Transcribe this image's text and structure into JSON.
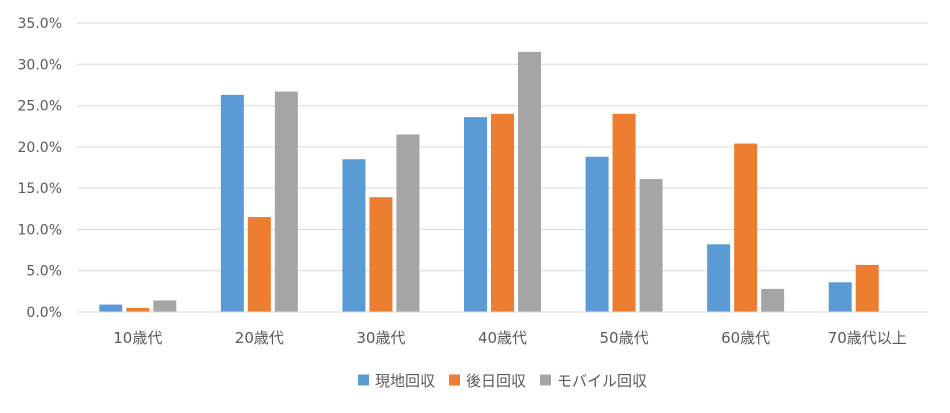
{
  "chart_data": {
    "type": "bar",
    "title": "",
    "xlabel": "",
    "ylabel": "",
    "ylim": [
      0,
      0.35
    ],
    "yticks": [
      "0.0%",
      "5.0%",
      "10.0%",
      "15.0%",
      "20.0%",
      "25.0%",
      "30.0%",
      "35.0%"
    ],
    "grid": true,
    "legend_position": "bottom",
    "categories": [
      "10歳代",
      "20歳代",
      "30歳代",
      "40歳代",
      "50歳代",
      "60歳代",
      "70歳代以上"
    ],
    "series": [
      {
        "name": "現地回収",
        "color": "#5B9BD5",
        "values": [
          0.009,
          0.263,
          0.185,
          0.236,
          0.188,
          0.082,
          0.036
        ]
      },
      {
        "name": "後日回収",
        "color": "#ED7D31",
        "values": [
          0.005,
          0.115,
          0.139,
          0.24,
          0.24,
          0.204,
          0.057
        ]
      },
      {
        "name": "モバイル回収",
        "color": "#A5A5A5",
        "values": [
          0.014,
          0.267,
          0.215,
          0.315,
          0.161,
          0.028,
          0
        ]
      }
    ]
  }
}
